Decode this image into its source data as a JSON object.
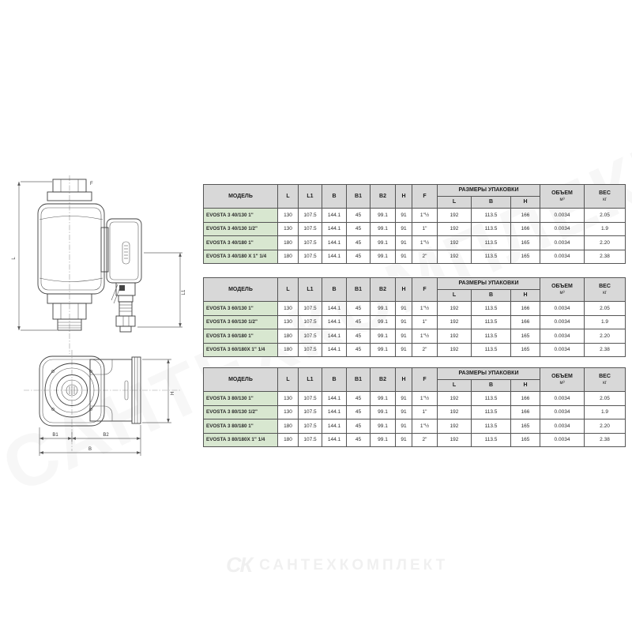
{
  "watermark": {
    "diagonal": "САНТЕХКОМПЛЕКТ",
    "logo_mark": "СК",
    "logo_text": "САНТЕХКОМПЛЕКТ"
  },
  "drawings": {
    "side_view": {
      "dim_left": "L",
      "dim_right": "L1",
      "dim_top": "F"
    },
    "top_view": {
      "dim_b1": "B1",
      "dim_b2": "B2",
      "dim_b": "B",
      "dim_h": "H"
    }
  },
  "table_headers": {
    "model": "МОДЕЛЬ",
    "l": "L",
    "l1": "L1",
    "b": "B",
    "b1": "B1",
    "b2": "B2",
    "h": "H",
    "f": "F",
    "package": "РАЗМЕРЫ УПАКОВКИ",
    "pkg_l": "L",
    "pkg_b": "B",
    "pkg_h": "H",
    "volume": "ОБЪЕМ",
    "volume_unit": "м³",
    "weight": "ВЕС",
    "weight_unit": "кг"
  },
  "tables": [
    {
      "rows": [
        [
          "EVOSTA 3 40/130 1\"",
          "130",
          "107.5",
          "144.1",
          "45",
          "99.1",
          "91",
          "1\"½",
          "192",
          "113.5",
          "166",
          "0.0034",
          "2.05"
        ],
        [
          "EVOSTA 3 40/130 1/2\"",
          "130",
          "107.5",
          "144.1",
          "45",
          "99.1",
          "91",
          "1\"",
          "192",
          "113.5",
          "166",
          "0.0034",
          "1.9"
        ],
        [
          "EVOSTA 3 40/180 1\"",
          "180",
          "107.5",
          "144.1",
          "45",
          "99.1",
          "91",
          "1\"½",
          "192",
          "113.5",
          "165",
          "0.0034",
          "2.20"
        ],
        [
          "EVOSTA 3 40/180 X 1\" 1/4",
          "180",
          "107.5",
          "144.1",
          "45",
          "99.1",
          "91",
          "2\"",
          "192",
          "113.5",
          "165",
          "0.0034",
          "2.38"
        ]
      ]
    },
    {
      "rows": [
        [
          "EVOSTA 3 60/130 1\"",
          "130",
          "107.5",
          "144.1",
          "45",
          "99.1",
          "91",
          "1\"½",
          "192",
          "113.5",
          "166",
          "0.0034",
          "2.05"
        ],
        [
          "EVOSTA 3 60/130 1/2\"",
          "130",
          "107.5",
          "144.1",
          "45",
          "99.1",
          "91",
          "1\"",
          "192",
          "113.5",
          "166",
          "0.0034",
          "1.9"
        ],
        [
          "EVOSTA 3 60/180 1\"",
          "180",
          "107.5",
          "144.1",
          "45",
          "99.1",
          "91",
          "1\"½",
          "192",
          "113.5",
          "165",
          "0.0034",
          "2.20"
        ],
        [
          "EVOSTA 3 60/180X 1\" 1/4",
          "180",
          "107.5",
          "144.1",
          "45",
          "99.1",
          "91",
          "2\"",
          "192",
          "113.5",
          "165",
          "0.0034",
          "2.38"
        ]
      ]
    },
    {
      "rows": [
        [
          "EVOSTA 3 80/130 1\"",
          "130",
          "107.5",
          "144.1",
          "45",
          "99.1",
          "91",
          "1\"½",
          "192",
          "113.5",
          "166",
          "0.0034",
          "2.05"
        ],
        [
          "EVOSTA 3 80/130 1/2\"",
          "130",
          "107.5",
          "144.1",
          "45",
          "99.1",
          "91",
          "1\"",
          "192",
          "113.5",
          "166",
          "0.0034",
          "1.9"
        ],
        [
          "EVOSTA 3 80/180 1\"",
          "180",
          "107.5",
          "144.1",
          "45",
          "99.1",
          "91",
          "1\"½",
          "192",
          "113.5",
          "165",
          "0.0034",
          "2.20"
        ],
        [
          "EVOSTA 3 80/180X 1\" 1/4",
          "180",
          "107.5",
          "144.1",
          "45",
          "99.1",
          "91",
          "2\"",
          "192",
          "113.5",
          "165",
          "0.0034",
          "2.38"
        ]
      ]
    }
  ],
  "colors": {
    "header_bg": "#d8d8d8",
    "model_bg": "#d8e7d0",
    "border": "#555555"
  }
}
